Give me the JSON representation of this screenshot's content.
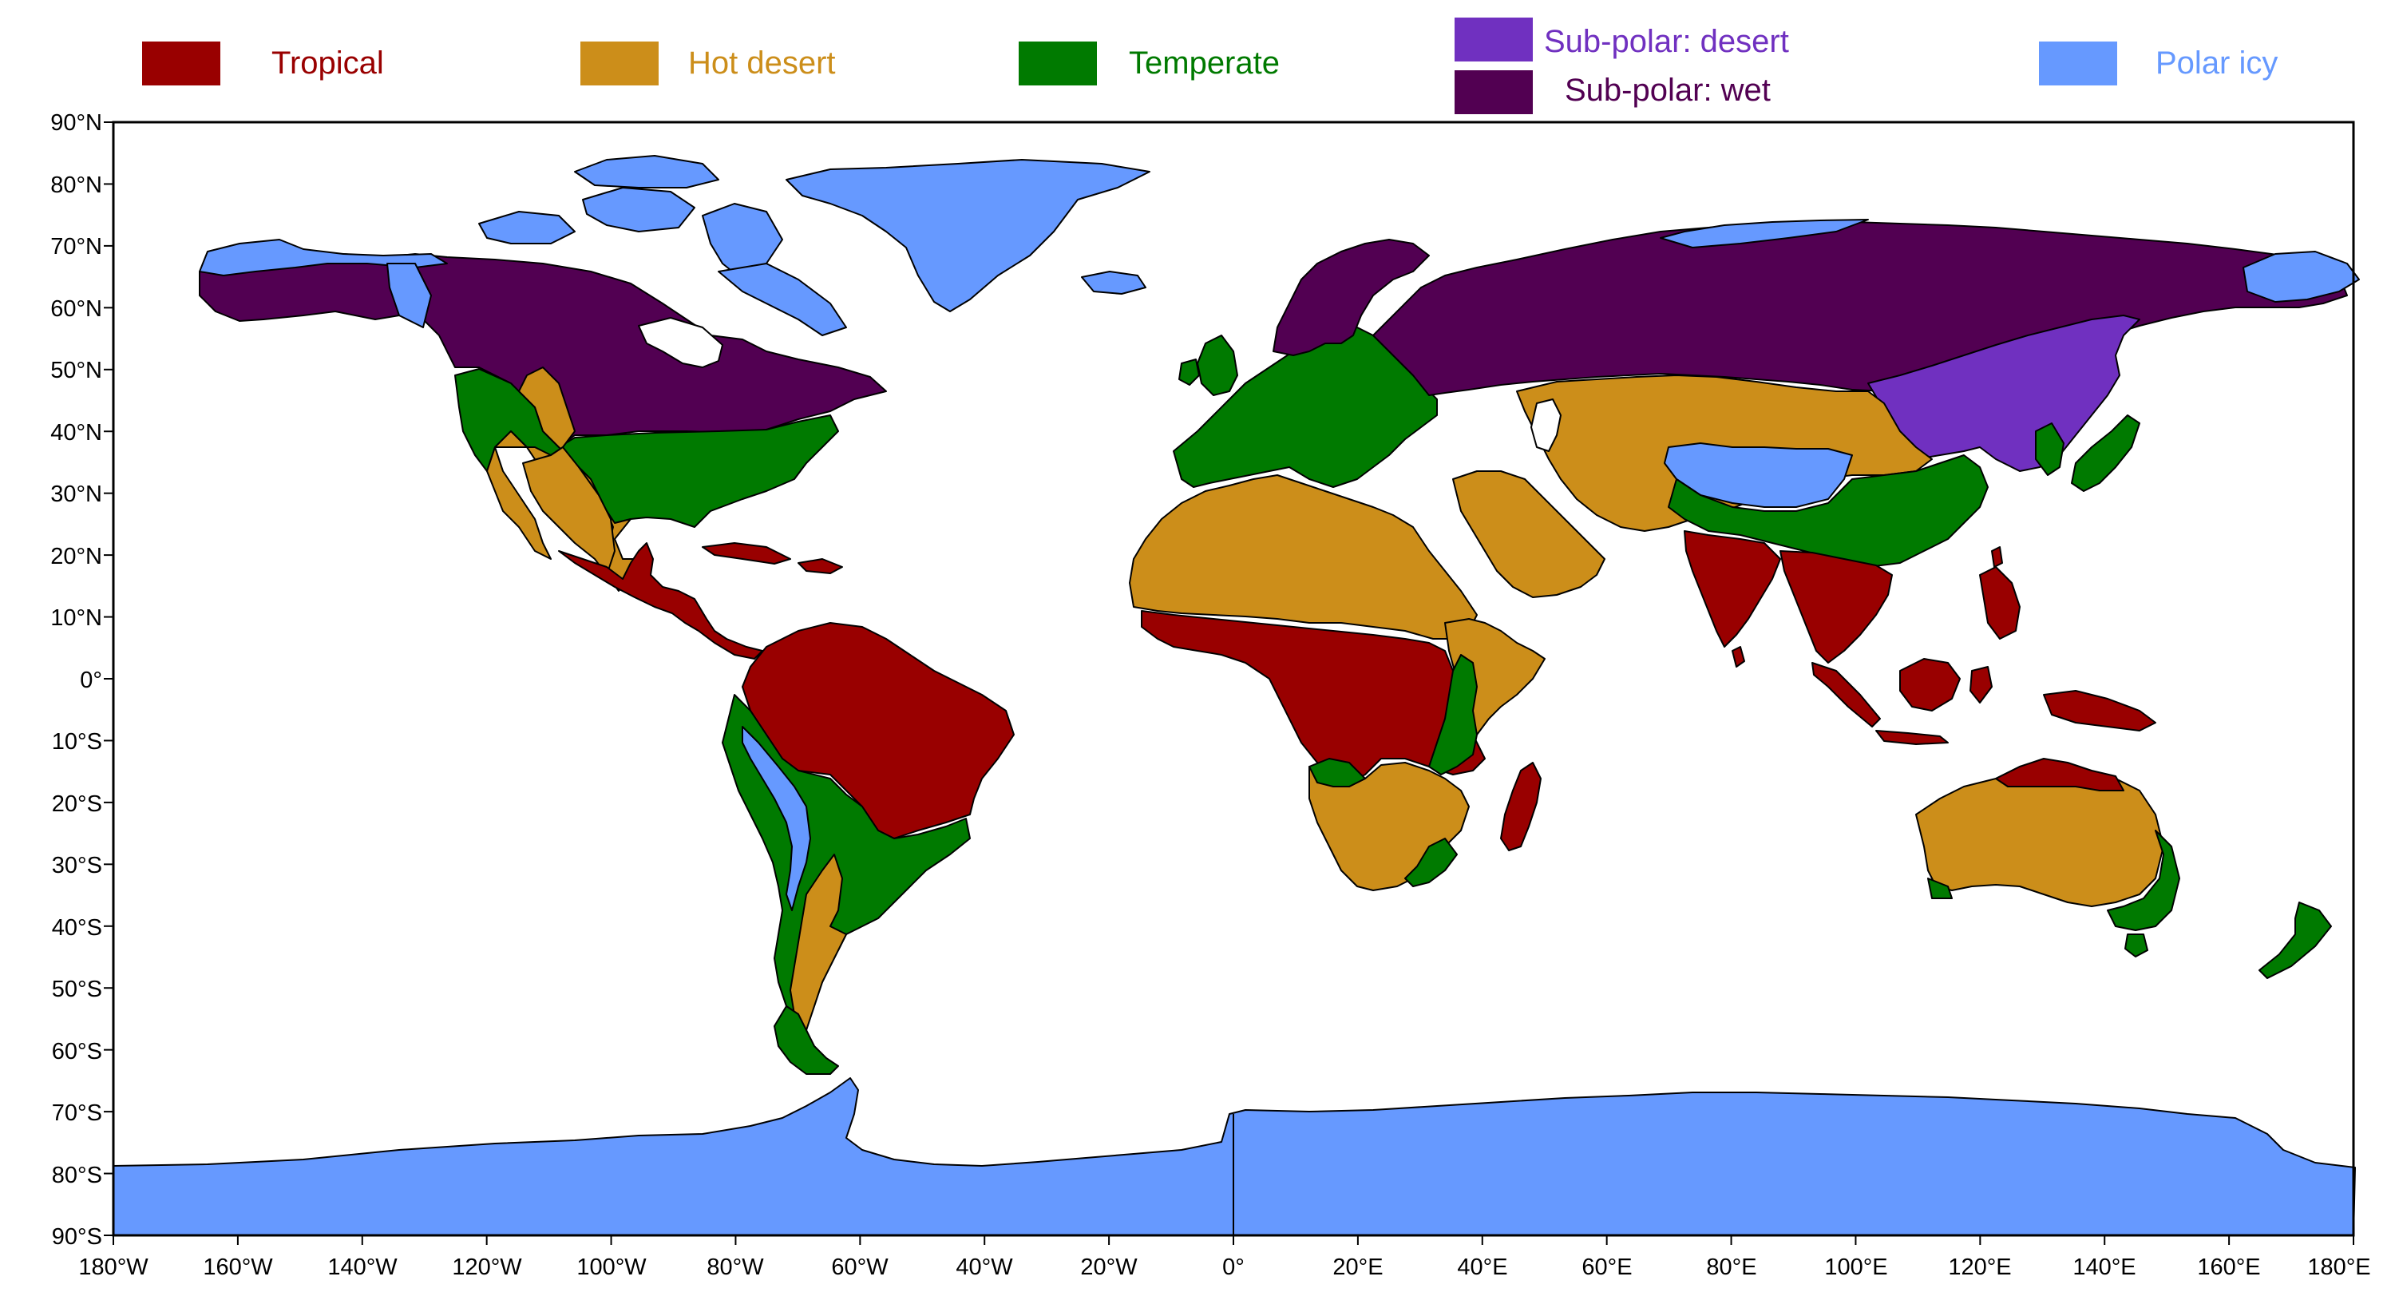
{
  "legend": [
    {
      "label": "Tropical",
      "color": "#990000"
    },
    {
      "label": "Hot desert",
      "color": "#cc8e1a"
    },
    {
      "label": "Temperate",
      "color": "#007a00"
    },
    {
      "label": "Sub-polar: desert",
      "color": "#7030c0"
    },
    {
      "label": "Sub-polar: wet",
      "color": "#520052"
    },
    {
      "label": "Polar icy",
      "color": "#6699ff"
    }
  ],
  "axes": {
    "x_ticks": [
      "180°W",
      "160°W",
      "140°W",
      "120°W",
      "100°W",
      "80°W",
      "60°W",
      "40°W",
      "20°W",
      "0°",
      "20°E",
      "40°E",
      "60°E",
      "80°E",
      "100°E",
      "120°E",
      "140°E",
      "160°E",
      "180°E"
    ],
    "y_ticks": [
      "90°N",
      "80°N",
      "70°N",
      "60°N",
      "50°N",
      "40°N",
      "30°N",
      "20°N",
      "10°N",
      "0°",
      "10°S",
      "20°S",
      "30°S",
      "40°S",
      "50°S",
      "60°S",
      "70°S",
      "80°S",
      "90°S"
    ]
  }
}
